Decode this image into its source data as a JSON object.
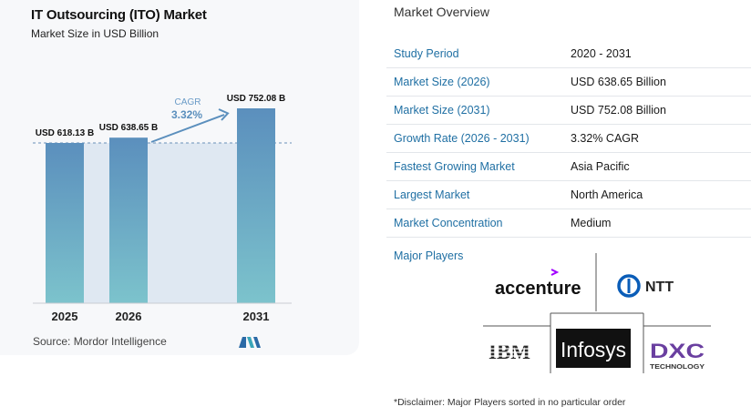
{
  "chart": {
    "title": "IT Outsourcing (ITO) Market",
    "subtitle": "Market Size in USD Billion",
    "source": "Source:  Mordor Intelligence",
    "cagr_label": "CAGR",
    "cagr_value": "3.32%"
  },
  "chart_data": {
    "type": "bar",
    "title": "IT Outsourcing (ITO) Market",
    "subtitle": "Market Size in USD Billion",
    "categories": [
      "2025",
      "2026",
      "2031"
    ],
    "values": [
      618.13,
      638.65,
      752.08
    ],
    "data_labels": [
      "USD 618.13 B",
      "USD 638.65 B",
      "USD 752.08 B"
    ],
    "cagr": "3.32%",
    "colors": {
      "bar_top": "#5b8fbd",
      "bar_bottom": "#7cc3cc",
      "area": "#dfe8f2",
      "reference_line": "#6a8fb8"
    }
  },
  "overview": {
    "title": "Market Overview",
    "rows": [
      {
        "label": "Study Period",
        "value": "2020 - 2031"
      },
      {
        "label": "Market Size (2026)",
        "value": "USD 638.65 Billion"
      },
      {
        "label": "Market Size (2031)",
        "value": "USD 752.08 Billion"
      },
      {
        "label": "Growth Rate (2026 - 2031)",
        "value": "3.32% CAGR"
      },
      {
        "label": "Fastest Growing Market",
        "value": "Asia Pacific"
      },
      {
        "label": "Largest Market",
        "value": "North America"
      },
      {
        "label": "Market Concentration",
        "value": "Medium"
      }
    ]
  },
  "players": {
    "title": "Major Players",
    "logos": {
      "accenture": "accenture",
      "ntt": "NTT",
      "ibm": "IBM",
      "infosys": "Infosys",
      "dxc": "DXC",
      "dxc_sub": "TECHNOLOGY"
    }
  },
  "disclaimer": "*Disclaimer: Major Players sorted in no particular order"
}
